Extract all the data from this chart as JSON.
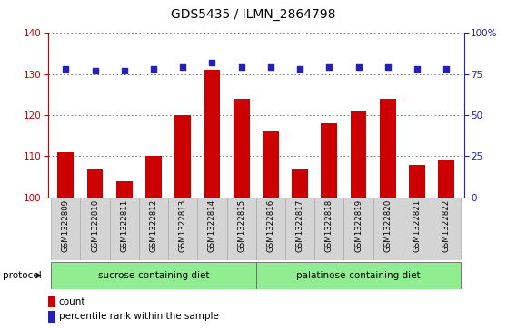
{
  "title": "GDS5435 / ILMN_2864798",
  "samples": [
    "GSM1322809",
    "GSM1322810",
    "GSM1322811",
    "GSM1322812",
    "GSM1322813",
    "GSM1322814",
    "GSM1322815",
    "GSM1322816",
    "GSM1322817",
    "GSM1322818",
    "GSM1322819",
    "GSM1322820",
    "GSM1322821",
    "GSM1322822"
  ],
  "counts": [
    111,
    107,
    104,
    110,
    120,
    131,
    124,
    116,
    107,
    118,
    121,
    124,
    108,
    109
  ],
  "percentiles": [
    78,
    77,
    77,
    78,
    79,
    82,
    79,
    79,
    78,
    79,
    79,
    79,
    78,
    78
  ],
  "ylim_left": [
    100,
    140
  ],
  "ylim_right": [
    0,
    100
  ],
  "yticks_left": [
    100,
    110,
    120,
    130,
    140
  ],
  "yticks_right": [
    0,
    25,
    50,
    75,
    100
  ],
  "ytick_labels_right": [
    "0",
    "25",
    "50",
    "75",
    "100%"
  ],
  "bar_color": "#cc0000",
  "dot_color": "#2222bb",
  "xticklabel_bg": "#d4d4d4",
  "protocol_group1_label": "sucrose-containing diet",
  "protocol_group2_label": "palatinose-containing diet",
  "protocol_group_color": "#90ee90",
  "protocol_group_border": "#666666",
  "protocol_label": "protocol",
  "legend_count_label": "count",
  "legend_pct_label": "percentile rank within the sample",
  "title_fontsize": 10,
  "tick_fontsize": 7.5,
  "sample_fontsize": 6.2,
  "legend_fontsize": 7.5
}
